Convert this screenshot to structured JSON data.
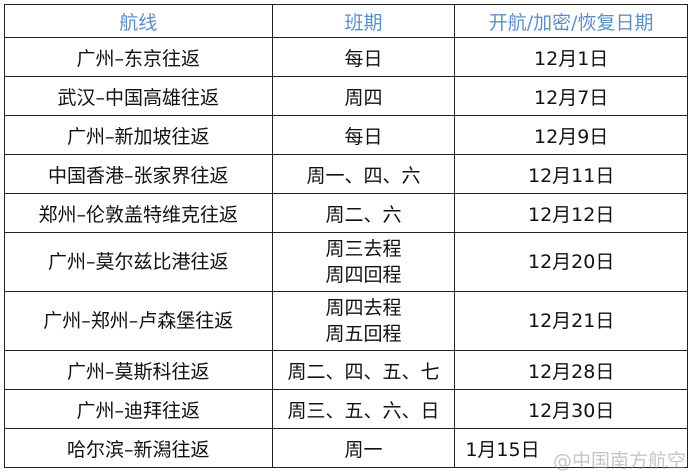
{
  "table": {
    "headers": [
      "航线",
      "班期",
      "开航/加密/恢复日期"
    ],
    "rows": [
      {
        "route": "广州–东京往返",
        "schedule": [
          "每日"
        ],
        "date": "12月1日"
      },
      {
        "route": "武汉–中国高雄往返",
        "schedule": [
          "周四"
        ],
        "date": "12月7日"
      },
      {
        "route": "广州–新加坡往返",
        "schedule": [
          "每日"
        ],
        "date": "12月9日"
      },
      {
        "route": "中国香港–张家界往返",
        "schedule": [
          "周一、四、六"
        ],
        "date": "12月11日"
      },
      {
        "route": "郑州–伦敦盖特维克往返",
        "schedule": [
          "周二、六"
        ],
        "date": "12月12日"
      },
      {
        "route": "广州–莫尔兹比港往返",
        "schedule": [
          "周三去程",
          "周四回程"
        ],
        "date": "12月20日"
      },
      {
        "route": "广州–郑州–卢森堡往返",
        "schedule": [
          "周四去程",
          "周五回程"
        ],
        "date": "12月21日"
      },
      {
        "route": "广州–莫斯科往返",
        "schedule": [
          "周二、四、五、七"
        ],
        "date": "12月28日"
      },
      {
        "route": "广州–迪拜往返",
        "schedule": [
          "周三、五、六、日"
        ],
        "date": "12月30日"
      },
      {
        "route": "哈尔滨–新潟往返",
        "schedule": [
          "周一"
        ],
        "date": "1月15日"
      }
    ]
  },
  "watermark": "@中国南方航空",
  "colors": {
    "header_text": "#5b8fc7",
    "border": "#222222"
  }
}
